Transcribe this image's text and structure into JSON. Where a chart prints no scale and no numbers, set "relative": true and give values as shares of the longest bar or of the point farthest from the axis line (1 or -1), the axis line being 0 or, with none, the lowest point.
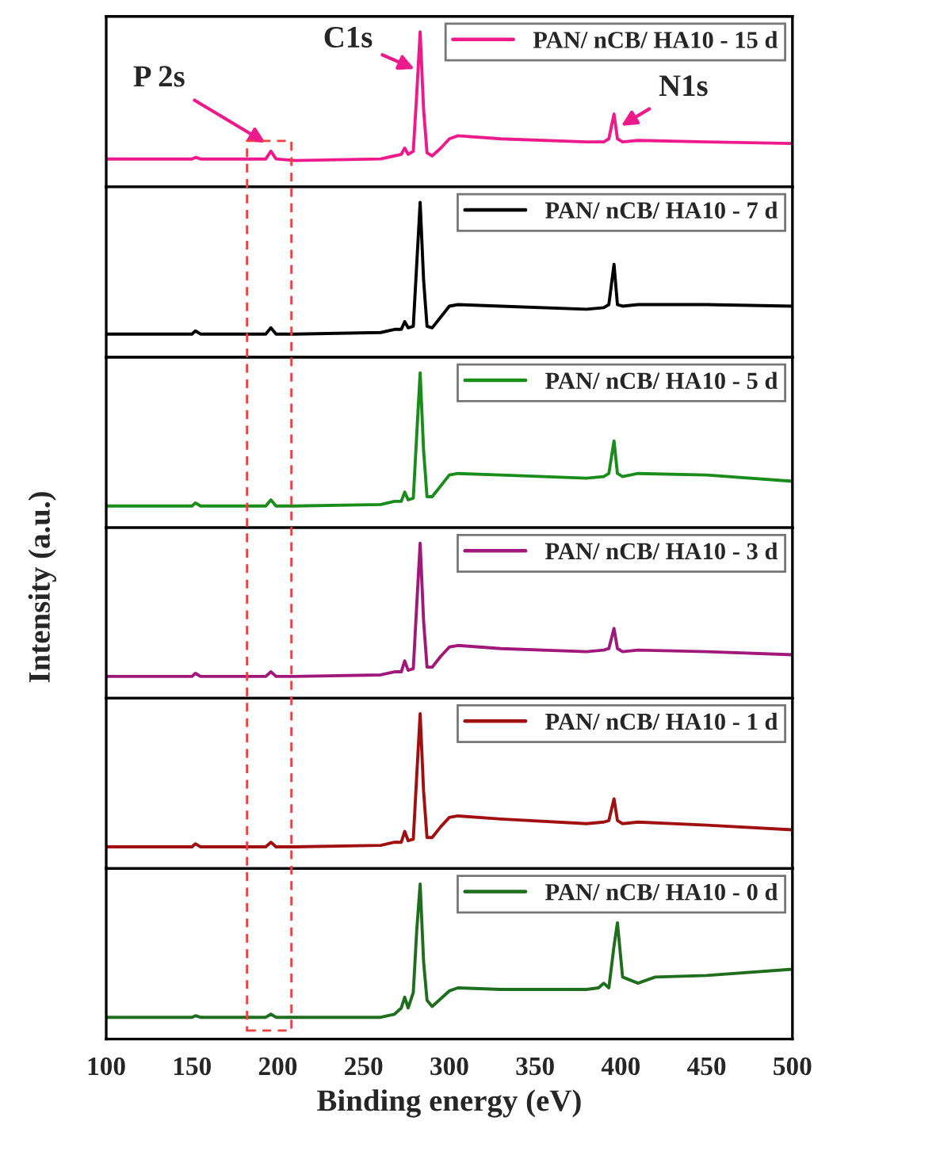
{
  "chart_data": [
    {
      "type": "line",
      "relative": true,
      "xlim": [
        100,
        500
      ],
      "tick_labels": false,
      "legend": "top right",
      "series": [
        {
          "name": "PAN/ nCB/ HA10 - 15 d",
          "color": "#ee1a8c",
          "x": [
            100,
            150,
            152,
            155,
            180,
            193,
            196,
            199,
            210,
            260,
            268,
            272,
            274,
            276,
            279,
            281,
            283,
            285,
            287,
            290,
            295,
            300,
            305,
            330,
            380,
            390,
            393,
            396,
            398,
            401,
            410,
            450,
            500
          ],
          "values": [
            0.18,
            0.18,
            0.19,
            0.18,
            0.18,
            0.18,
            0.23,
            0.18,
            0.17,
            0.18,
            0.2,
            0.21,
            0.25,
            0.21,
            0.23,
            0.6,
            1.0,
            0.5,
            0.22,
            0.2,
            0.25,
            0.31,
            0.33,
            0.31,
            0.29,
            0.29,
            0.31,
            0.47,
            0.31,
            0.29,
            0.3,
            0.29,
            0.28
          ]
        }
      ],
      "xticks": [
        100,
        150,
        200,
        250,
        300,
        350,
        400,
        450,
        500
      ],
      "annotations": [
        {
          "text": "C1s",
          "x": 282,
          "y": 0.75
        },
        {
          "text": "N1s",
          "x": 398,
          "y": 0.38
        },
        {
          "text": "P 2s",
          "x": 195,
          "y": 0.27
        }
      ]
    },
    {
      "type": "line",
      "relative": true,
      "xlim": [
        100,
        500
      ],
      "xticks": [
        100,
        150,
        200,
        250,
        300,
        350,
        400,
        450,
        500
      ],
      "tick_labels": false,
      "legend": "top right",
      "series": [
        {
          "name": "PAN/ nCB/ HA10 - 7 d",
          "color": "#000000",
          "x": [
            100,
            150,
            152,
            155,
            180,
            193,
            196,
            199,
            210,
            260,
            268,
            272,
            274,
            276,
            279,
            281,
            283,
            285,
            287,
            290,
            295,
            300,
            305,
            330,
            380,
            390,
            393,
            396,
            398,
            401,
            410,
            450,
            500
          ],
          "values": [
            0.15,
            0.15,
            0.17,
            0.15,
            0.15,
            0.15,
            0.19,
            0.15,
            0.15,
            0.16,
            0.18,
            0.18,
            0.23,
            0.19,
            0.2,
            0.6,
            1.0,
            0.5,
            0.2,
            0.19,
            0.26,
            0.33,
            0.34,
            0.33,
            0.31,
            0.32,
            0.34,
            0.6,
            0.34,
            0.33,
            0.34,
            0.34,
            0.33
          ]
        }
      ]
    },
    {
      "type": "line",
      "relative": true,
      "xlim": [
        100,
        500
      ],
      "xticks": [
        100,
        150,
        200,
        250,
        300,
        350,
        400,
        450,
        500
      ],
      "tick_labels": false,
      "legend": "top right",
      "series": [
        {
          "name": "PAN/ nCB/ HA10 - 5 d",
          "color": "#1a8c1a",
          "x": [
            100,
            150,
            152,
            155,
            180,
            193,
            196,
            199,
            210,
            260,
            268,
            272,
            274,
            276,
            279,
            281,
            283,
            285,
            287,
            290,
            295,
            300,
            305,
            330,
            380,
            390,
            393,
            396,
            398,
            401,
            410,
            450,
            500
          ],
          "values": [
            0.14,
            0.14,
            0.16,
            0.14,
            0.14,
            0.14,
            0.18,
            0.14,
            0.14,
            0.15,
            0.17,
            0.17,
            0.23,
            0.18,
            0.19,
            0.6,
            1.0,
            0.5,
            0.2,
            0.2,
            0.27,
            0.34,
            0.35,
            0.34,
            0.32,
            0.33,
            0.35,
            0.56,
            0.35,
            0.33,
            0.35,
            0.34,
            0.3
          ]
        }
      ]
    },
    {
      "type": "line",
      "relative": true,
      "xlim": [
        100,
        500
      ],
      "xticks": [
        100,
        150,
        200,
        250,
        300,
        350,
        400,
        450,
        500
      ],
      "tick_labels": false,
      "legend": "top right",
      "ylabel": "Intensity (a.u.)",
      "series": [
        {
          "name": "PAN/ nCB/ HA10 - 3 d",
          "color": "#a0197a",
          "x": [
            100,
            150,
            152,
            155,
            180,
            193,
            196,
            199,
            210,
            260,
            268,
            272,
            274,
            276,
            279,
            281,
            283,
            285,
            287,
            290,
            295,
            300,
            305,
            330,
            380,
            390,
            393,
            396,
            398,
            401,
            410,
            450,
            500
          ],
          "values": [
            0.14,
            0.14,
            0.16,
            0.14,
            0.14,
            0.14,
            0.17,
            0.14,
            0.14,
            0.15,
            0.17,
            0.17,
            0.24,
            0.18,
            0.19,
            0.6,
            1.0,
            0.5,
            0.2,
            0.2,
            0.27,
            0.33,
            0.34,
            0.32,
            0.3,
            0.31,
            0.32,
            0.45,
            0.32,
            0.3,
            0.31,
            0.3,
            0.28
          ]
        }
      ]
    },
    {
      "type": "line",
      "relative": true,
      "xlim": [
        100,
        500
      ],
      "xticks": [
        100,
        150,
        200,
        250,
        300,
        350,
        400,
        450,
        500
      ],
      "tick_labels": false,
      "legend": "top right",
      "series": [
        {
          "name": "PAN/ nCB/ HA10 - 1 d",
          "color": "#a01010",
          "x": [
            100,
            150,
            152,
            155,
            180,
            193,
            196,
            199,
            210,
            260,
            268,
            272,
            274,
            276,
            279,
            281,
            283,
            285,
            287,
            290,
            295,
            300,
            305,
            330,
            380,
            390,
            393,
            396,
            398,
            401,
            410,
            450,
            500
          ],
          "values": [
            0.14,
            0.14,
            0.16,
            0.14,
            0.14,
            0.14,
            0.17,
            0.14,
            0.14,
            0.15,
            0.17,
            0.17,
            0.24,
            0.18,
            0.19,
            0.6,
            1.0,
            0.5,
            0.2,
            0.2,
            0.27,
            0.33,
            0.34,
            0.32,
            0.29,
            0.3,
            0.31,
            0.45,
            0.31,
            0.29,
            0.3,
            0.28,
            0.25
          ]
        }
      ]
    },
    {
      "type": "line",
      "relative": true,
      "xlim": [
        100,
        500
      ],
      "xticks": [
        100,
        150,
        200,
        250,
        300,
        350,
        400,
        450,
        500
      ],
      "legend": "top right",
      "xlabel": "Binding energy (eV)",
      "series": [
        {
          "name": "PAN/ nCB/ HA10 - 0 d",
          "color": "#1e6e1e",
          "x": [
            100,
            150,
            152,
            155,
            180,
            193,
            196,
            199,
            210,
            260,
            268,
            272,
            274,
            276,
            279,
            281,
            283,
            285,
            287,
            290,
            295,
            300,
            305,
            330,
            380,
            387,
            390,
            393,
            396,
            398,
            401,
            410,
            420,
            450,
            500
          ],
          "values": [
            0.14,
            0.14,
            0.15,
            0.14,
            0.14,
            0.14,
            0.16,
            0.14,
            0.14,
            0.14,
            0.16,
            0.2,
            0.27,
            0.2,
            0.3,
            0.7,
            1.0,
            0.5,
            0.25,
            0.21,
            0.26,
            0.31,
            0.33,
            0.32,
            0.32,
            0.33,
            0.36,
            0.33,
            0.6,
            0.75,
            0.4,
            0.36,
            0.4,
            0.41,
            0.45
          ]
        }
      ]
    }
  ]
}
